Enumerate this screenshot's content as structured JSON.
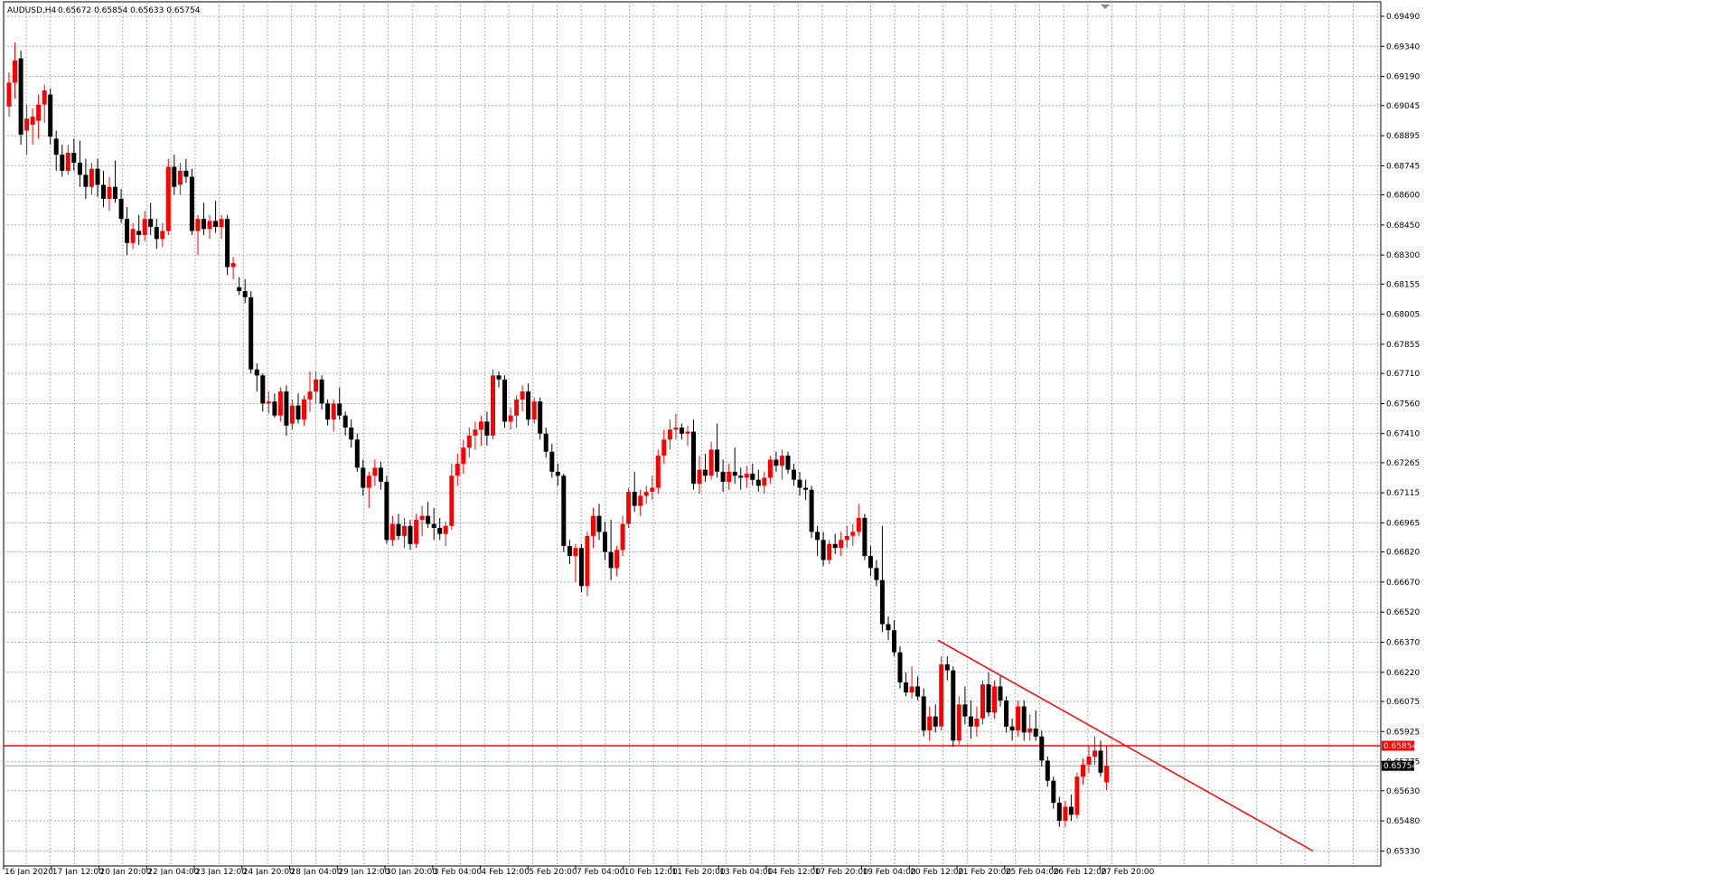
{
  "header": {
    "title": "AUDUSD,H4",
    "ohlc": "0.65672 0.65854 0.65633 0.65754"
  },
  "price_tags": {
    "horizontal_line": "0.65854",
    "last_price": "0.65754"
  },
  "chart_data": {
    "type": "candlestick",
    "symbol": "AUDUSD",
    "timeframe": "H4",
    "ylim": [
      0.6532,
      0.696
    ],
    "y_ticks": [
      "0.69490",
      "0.69340",
      "0.69190",
      "0.69045",
      "0.68895",
      "0.68745",
      "0.68600",
      "0.68450",
      "0.68300",
      "0.68155",
      "0.68005",
      "0.67855",
      "0.67710",
      "0.67560",
      "0.67410",
      "0.67265",
      "0.67115",
      "0.66965",
      "0.66820",
      "0.66670",
      "0.66520",
      "0.66370",
      "0.66220",
      "0.66075",
      "0.65925",
      "0.65775",
      "0.65630",
      "0.65480",
      "0.65330"
    ],
    "x_ticks": [
      "16 Jan 2020",
      "17 Jan 12:00",
      "20 Jan 20:00",
      "22 Jan 04:00",
      "23 Jan 12:00",
      "24 Jan 20:00",
      "28 Jan 04:00",
      "29 Jan 12:00",
      "30 Jan 20:00",
      "3 Feb 04:00",
      "4 Feb 12:00",
      "5 Feb 20:00",
      "7 Feb 04:00",
      "10 Feb 12:00",
      "11 Feb 20:00",
      "13 Feb 04:00",
      "14 Feb 12:00",
      "17 Feb 20:00",
      "19 Feb 04:00",
      "20 Feb 12:00",
      "21 Feb 20:00",
      "25 Feb 04:00",
      "26 Feb 12:00",
      "27 Feb 20:00"
    ],
    "grid": true,
    "bull_color": "#ff0000",
    "bear_color": "#000000",
    "horizontal_level": 0.65854,
    "last_price": 0.65754,
    "trendline": {
      "start": {
        "bar": 0,
        "price": 0.6638
      },
      "end": {
        "bar": 1,
        "price": 0.6533
      }
    },
    "candles": [
      [
        0.6904,
        0.6921,
        0.6899,
        0.6916
      ],
      [
        0.6916,
        0.6936,
        0.6908,
        0.6927
      ],
      [
        0.6928,
        0.6932,
        0.6885,
        0.689
      ],
      [
        0.6892,
        0.6905,
        0.688,
        0.6898
      ],
      [
        0.6895,
        0.6903,
        0.6885,
        0.6899
      ],
      [
        0.6897,
        0.691,
        0.6888,
        0.6905
      ],
      [
        0.6905,
        0.6915,
        0.6896,
        0.6912
      ],
      [
        0.691,
        0.6913,
        0.6885,
        0.6889
      ],
      [
        0.6888,
        0.6892,
        0.6872,
        0.688
      ],
      [
        0.688,
        0.6885,
        0.6869,
        0.6872
      ],
      [
        0.6872,
        0.6885,
        0.687,
        0.6881
      ],
      [
        0.6881,
        0.6888,
        0.6872,
        0.6876
      ],
      [
        0.6876,
        0.6887,
        0.6864,
        0.687
      ],
      [
        0.687,
        0.6878,
        0.6858,
        0.6864
      ],
      [
        0.6864,
        0.6876,
        0.686,
        0.6873
      ],
      [
        0.6873,
        0.6878,
        0.6859,
        0.6865
      ],
      [
        0.6865,
        0.6872,
        0.6854,
        0.6858
      ],
      [
        0.6858,
        0.6869,
        0.6852,
        0.6864
      ],
      [
        0.6864,
        0.6877,
        0.6856,
        0.6858
      ],
      [
        0.6858,
        0.6863,
        0.6846,
        0.6848
      ],
      [
        0.6848,
        0.6854,
        0.683,
        0.6836
      ],
      [
        0.6836,
        0.6846,
        0.6833,
        0.6843
      ],
      [
        0.6842,
        0.685,
        0.6835,
        0.684
      ],
      [
        0.684,
        0.6852,
        0.6837,
        0.6848
      ],
      [
        0.6848,
        0.6856,
        0.684,
        0.6844
      ],
      [
        0.6844,
        0.6848,
        0.6833,
        0.6838
      ],
      [
        0.6838,
        0.6846,
        0.6834,
        0.6842
      ],
      [
        0.6842,
        0.6878,
        0.684,
        0.6874
      ],
      [
        0.6874,
        0.688,
        0.686,
        0.6864
      ],
      [
        0.6865,
        0.6876,
        0.686,
        0.6872
      ],
      [
        0.6872,
        0.6878,
        0.6866,
        0.6869
      ],
      [
        0.6869,
        0.6873,
        0.684,
        0.6842
      ],
      [
        0.6842,
        0.685,
        0.683,
        0.6848
      ],
      [
        0.6848,
        0.6856,
        0.684,
        0.6843
      ],
      [
        0.6843,
        0.685,
        0.6838,
        0.6847
      ],
      [
        0.6847,
        0.6857,
        0.6841,
        0.6844
      ],
      [
        0.6844,
        0.685,
        0.6838,
        0.6848
      ],
      [
        0.6848,
        0.685,
        0.682,
        0.6824
      ],
      [
        0.6824,
        0.6829,
        0.6818,
        0.6826
      ],
      [
        0.6814,
        0.6819,
        0.681,
        0.6812
      ],
      [
        0.6812,
        0.6818,
        0.6806,
        0.6809
      ],
      [
        0.6809,
        0.6812,
        0.6771,
        0.6773
      ],
      [
        0.6773,
        0.6776,
        0.6762,
        0.677
      ],
      [
        0.677,
        0.6771,
        0.6752,
        0.6756
      ],
      [
        0.6756,
        0.6762,
        0.6751,
        0.6757
      ],
      [
        0.6757,
        0.6761,
        0.6749,
        0.675
      ],
      [
        0.675,
        0.6764,
        0.6747,
        0.6762
      ],
      [
        0.6762,
        0.6765,
        0.674,
        0.6745
      ],
      [
        0.6746,
        0.6758,
        0.6743,
        0.6755
      ],
      [
        0.6755,
        0.6761,
        0.6746,
        0.6748
      ],
      [
        0.6748,
        0.676,
        0.6745,
        0.6758
      ],
      [
        0.6758,
        0.6772,
        0.6752,
        0.6762
      ],
      [
        0.6762,
        0.6772,
        0.6756,
        0.6768
      ],
      [
        0.6768,
        0.677,
        0.6753,
        0.6756
      ],
      [
        0.6756,
        0.6758,
        0.6745,
        0.6748
      ],
      [
        0.6748,
        0.6758,
        0.6742,
        0.6756
      ],
      [
        0.6756,
        0.6764,
        0.6748,
        0.675
      ],
      [
        0.675,
        0.6752,
        0.674,
        0.6744
      ],
      [
        0.6744,
        0.6748,
        0.6734,
        0.6738
      ],
      [
        0.6738,
        0.6741,
        0.6722,
        0.6724
      ],
      [
        0.6724,
        0.6728,
        0.671,
        0.6714
      ],
      [
        0.6714,
        0.6722,
        0.6704,
        0.672
      ],
      [
        0.672,
        0.6728,
        0.6715,
        0.6724
      ],
      [
        0.6724,
        0.6727,
        0.6713,
        0.6717
      ],
      [
        0.6717,
        0.672,
        0.6686,
        0.6688
      ],
      [
        0.6688,
        0.67,
        0.6685,
        0.6696
      ],
      [
        0.6696,
        0.6701,
        0.6688,
        0.669
      ],
      [
        0.669,
        0.6699,
        0.6684,
        0.6695
      ],
      [
        0.6695,
        0.6698,
        0.6683,
        0.6686
      ],
      [
        0.6686,
        0.6701,
        0.6684,
        0.6698
      ],
      [
        0.6698,
        0.6705,
        0.669,
        0.67
      ],
      [
        0.67,
        0.6707,
        0.6694,
        0.6696
      ],
      [
        0.6696,
        0.6704,
        0.6688,
        0.6694
      ],
      [
        0.6694,
        0.6699,
        0.6688,
        0.6691
      ],
      [
        0.6691,
        0.6697,
        0.6685,
        0.6695
      ],
      [
        0.6695,
        0.6726,
        0.6693,
        0.672
      ],
      [
        0.672,
        0.6731,
        0.6715,
        0.6726
      ],
      [
        0.6726,
        0.6738,
        0.6721,
        0.6734
      ],
      [
        0.6734,
        0.6744,
        0.6729,
        0.674
      ],
      [
        0.674,
        0.6747,
        0.6733,
        0.6743
      ],
      [
        0.6743,
        0.675,
        0.6735,
        0.6747
      ],
      [
        0.6747,
        0.6752,
        0.6735,
        0.674
      ],
      [
        0.674,
        0.6773,
        0.6738,
        0.677
      ],
      [
        0.677,
        0.6772,
        0.6764,
        0.6768
      ],
      [
        0.6768,
        0.677,
        0.6744,
        0.6747
      ],
      [
        0.6747,
        0.6754,
        0.6743,
        0.675
      ],
      [
        0.675,
        0.676,
        0.6744,
        0.6758
      ],
      [
        0.6758,
        0.6765,
        0.6752,
        0.6762
      ],
      [
        0.6762,
        0.6766,
        0.6745,
        0.6748
      ],
      [
        0.6748,
        0.6759,
        0.6746,
        0.6757
      ],
      [
        0.6757,
        0.6759,
        0.6738,
        0.6741
      ],
      [
        0.6741,
        0.6744,
        0.6729,
        0.6732
      ],
      [
        0.6732,
        0.6736,
        0.6719,
        0.6722
      ],
      [
        0.6722,
        0.6726,
        0.6715,
        0.672
      ],
      [
        0.672,
        0.6721,
        0.6682,
        0.6685
      ],
      [
        0.6685,
        0.6688,
        0.6676,
        0.668
      ],
      [
        0.668,
        0.6686,
        0.6667,
        0.6684
      ],
      [
        0.6684,
        0.6686,
        0.6662,
        0.6665
      ],
      [
        0.6665,
        0.6692,
        0.666,
        0.669
      ],
      [
        0.669,
        0.6704,
        0.6684,
        0.67
      ],
      [
        0.67,
        0.6706,
        0.6688,
        0.6692
      ],
      [
        0.6692,
        0.6697,
        0.6678,
        0.6682
      ],
      [
        0.6682,
        0.6698,
        0.6668,
        0.6674
      ],
      [
        0.6674,
        0.6685,
        0.667,
        0.6683
      ],
      [
        0.6683,
        0.67,
        0.668,
        0.6696
      ],
      [
        0.6696,
        0.6714,
        0.6694,
        0.6712
      ],
      [
        0.6712,
        0.6722,
        0.6702,
        0.6705
      ],
      [
        0.6705,
        0.6713,
        0.67,
        0.671
      ],
      [
        0.671,
        0.6715,
        0.6706,
        0.6712
      ],
      [
        0.6712,
        0.672,
        0.6708,
        0.6714
      ],
      [
        0.6714,
        0.6733,
        0.6711,
        0.673
      ],
      [
        0.673,
        0.6743,
        0.6726,
        0.6738
      ],
      [
        0.6738,
        0.6748,
        0.6733,
        0.6743
      ],
      [
        0.6743,
        0.6751,
        0.6738,
        0.6744
      ],
      [
        0.6744,
        0.6746,
        0.6738,
        0.6741
      ],
      [
        0.6741,
        0.6745,
        0.6735,
        0.6742
      ],
      [
        0.6742,
        0.6748,
        0.6713,
        0.6716
      ],
      [
        0.6716,
        0.673,
        0.6711,
        0.6723
      ],
      [
        0.6723,
        0.6731,
        0.6717,
        0.672
      ],
      [
        0.672,
        0.6737,
        0.6718,
        0.6733
      ],
      [
        0.6733,
        0.6746,
        0.6719,
        0.6722
      ],
      [
        0.6722,
        0.6728,
        0.6712,
        0.6717
      ],
      [
        0.6717,
        0.6726,
        0.6713,
        0.6722
      ],
      [
        0.6722,
        0.6734,
        0.6716,
        0.672
      ],
      [
        0.672,
        0.6724,
        0.6713,
        0.6719
      ],
      [
        0.6719,
        0.6725,
        0.6714,
        0.6721
      ],
      [
        0.6721,
        0.6726,
        0.6715,
        0.6718
      ],
      [
        0.6718,
        0.6723,
        0.6712,
        0.6715
      ],
      [
        0.6715,
        0.6722,
        0.6711,
        0.6719
      ],
      [
        0.6719,
        0.673,
        0.6716,
        0.6728
      ],
      [
        0.6728,
        0.6732,
        0.6722,
        0.6725
      ],
      [
        0.6725,
        0.6733,
        0.6718,
        0.673
      ],
      [
        0.673,
        0.6732,
        0.6721,
        0.6723
      ],
      [
        0.6723,
        0.6726,
        0.6715,
        0.6718
      ],
      [
        0.6718,
        0.6722,
        0.671,
        0.6714
      ],
      [
        0.6714,
        0.6718,
        0.6708,
        0.6713
      ],
      [
        0.6713,
        0.6715,
        0.6689,
        0.6692
      ],
      [
        0.6692,
        0.6695,
        0.668,
        0.6688
      ],
      [
        0.6688,
        0.6692,
        0.6675,
        0.6678
      ],
      [
        0.6678,
        0.6688,
        0.6676,
        0.6686
      ],
      [
        0.6686,
        0.6691,
        0.6681,
        0.6684
      ],
      [
        0.6684,
        0.6692,
        0.668,
        0.6688
      ],
      [
        0.6688,
        0.6695,
        0.6684,
        0.669
      ],
      [
        0.669,
        0.6696,
        0.6685,
        0.6692
      ],
      [
        0.6692,
        0.6706,
        0.669,
        0.6699
      ],
      [
        0.6699,
        0.6701,
        0.6678,
        0.668
      ],
      [
        0.668,
        0.6685,
        0.667,
        0.6674
      ],
      [
        0.6674,
        0.6678,
        0.6665,
        0.6668
      ],
      [
        0.6668,
        0.6695,
        0.6642,
        0.6646
      ],
      [
        0.6646,
        0.665,
        0.6638,
        0.6643
      ],
      [
        0.6643,
        0.6648,
        0.663,
        0.6632
      ],
      [
        0.6632,
        0.6635,
        0.6614,
        0.6617
      ],
      [
        0.6617,
        0.6622,
        0.661,
        0.6612
      ],
      [
        0.6612,
        0.6625,
        0.6609,
        0.6615
      ],
      [
        0.6615,
        0.662,
        0.6608,
        0.661
      ],
      [
        0.661,
        0.6614,
        0.659,
        0.6593
      ],
      [
        0.6593,
        0.6605,
        0.6588,
        0.66
      ],
      [
        0.66,
        0.6606,
        0.6592,
        0.6595
      ],
      [
        0.6595,
        0.663,
        0.6593,
        0.6626
      ],
      [
        0.6626,
        0.663,
        0.6618,
        0.6623
      ],
      [
        0.6623,
        0.6625,
        0.6585,
        0.6588
      ],
      [
        0.6588,
        0.661,
        0.6586,
        0.6606
      ],
      [
        0.6606,
        0.6615,
        0.6596,
        0.66
      ],
      [
        0.66,
        0.6608,
        0.6589,
        0.6595
      ],
      [
        0.6595,
        0.6605,
        0.659,
        0.6599
      ],
      [
        0.6599,
        0.6618,
        0.6596,
        0.6616
      ],
      [
        0.6616,
        0.6622,
        0.66,
        0.6602
      ],
      [
        0.6602,
        0.6618,
        0.6599,
        0.6615
      ],
      [
        0.6615,
        0.662,
        0.6605,
        0.6608
      ],
      [
        0.6608,
        0.661,
        0.6592,
        0.6595
      ],
      [
        0.6595,
        0.6599,
        0.6588,
        0.6593
      ],
      [
        0.6593,
        0.6608,
        0.659,
        0.6605
      ],
      [
        0.6605,
        0.6608,
        0.6588,
        0.6592
      ],
      [
        0.6592,
        0.6601,
        0.6588,
        0.6594
      ],
      [
        0.6594,
        0.6603,
        0.6588,
        0.659
      ],
      [
        0.659,
        0.6593,
        0.6575,
        0.6578
      ],
      [
        0.6578,
        0.658,
        0.6565,
        0.6568
      ],
      [
        0.6568,
        0.657,
        0.6554,
        0.6557
      ],
      [
        0.6557,
        0.656,
        0.6545,
        0.6548
      ],
      [
        0.6548,
        0.6558,
        0.6545,
        0.6555
      ],
      [
        0.6555,
        0.6561,
        0.6548,
        0.6551
      ],
      [
        0.6551,
        0.6572,
        0.6549,
        0.657
      ],
      [
        0.657,
        0.6579,
        0.6566,
        0.6576
      ],
      [
        0.6576,
        0.6585,
        0.6572,
        0.658
      ],
      [
        0.658,
        0.659,
        0.6576,
        0.6583
      ],
      [
        0.6583,
        0.6588,
        0.657,
        0.6572
      ],
      [
        0.65672,
        0.65854,
        0.65633,
        0.65754
      ]
    ]
  }
}
